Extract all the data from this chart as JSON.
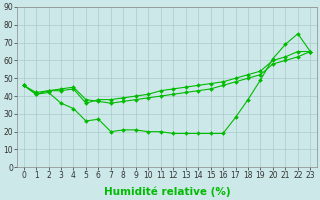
{
  "title": "",
  "xlabel": "Humidité relative (%)",
  "ylabel": "",
  "background_color": "#cce8e8",
  "grid_color": "#aacccc",
  "line_color": "#00bb00",
  "x": [
    0,
    1,
    2,
    3,
    4,
    5,
    6,
    7,
    8,
    9,
    10,
    11,
    12,
    13,
    14,
    15,
    16,
    17,
    18,
    19,
    20,
    21,
    22,
    23
  ],
  "line1": [
    46,
    41,
    43,
    43,
    44,
    36,
    38,
    38,
    39,
    40,
    41,
    43,
    44,
    45,
    46,
    47,
    48,
    50,
    52,
    54,
    60,
    62,
    65,
    65
  ],
  "line2": [
    46,
    42,
    43,
    44,
    45,
    38,
    37,
    36,
    37,
    38,
    39,
    40,
    41,
    42,
    43,
    44,
    46,
    48,
    50,
    52,
    58,
    60,
    62,
    65
  ],
  "line3": [
    46,
    41,
    42,
    36,
    33,
    26,
    27,
    20,
    21,
    21,
    20,
    20,
    19,
    19,
    19,
    19,
    19,
    28,
    38,
    49,
    61,
    69,
    75,
    65
  ],
  "xlim": [
    0,
    23
  ],
  "ylim": [
    0,
    90
  ],
  "yticks": [
    0,
    10,
    20,
    30,
    40,
    50,
    60,
    70,
    80,
    90
  ],
  "xticks": [
    0,
    1,
    2,
    3,
    4,
    5,
    6,
    7,
    8,
    9,
    10,
    11,
    12,
    13,
    14,
    15,
    16,
    17,
    18,
    19,
    20,
    21,
    22,
    23
  ],
  "tick_fontsize": 5.5,
  "xlabel_fontsize": 7.5,
  "marker": "D",
  "markersize": 2.0,
  "linewidth": 0.8
}
